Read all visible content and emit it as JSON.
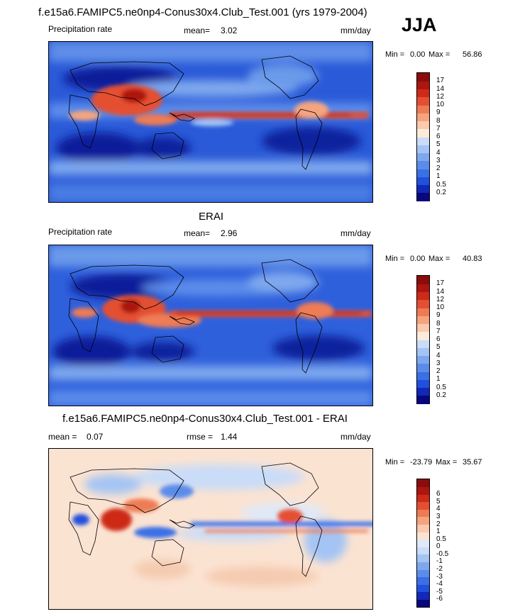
{
  "season": "JJA",
  "colors": {
    "precip": [
      "#08077d",
      "#1128b8",
      "#2150dd",
      "#3a6fe6",
      "#5b8cea",
      "#7ea8ee",
      "#a4c4f4",
      "#c9dcf8",
      "#fdebd9",
      "#fbc9ab",
      "#f5a47e",
      "#ee7b55",
      "#e44f33",
      "#cd2a18",
      "#ad1510",
      "#8a0d0b"
    ],
    "diff": [
      "#08077d",
      "#1128b8",
      "#2150dd",
      "#3a6fe6",
      "#5b8cea",
      "#7ea8ee",
      "#a4c4f4",
      "#c9dcf8",
      "#dfe9f8",
      "#fbe3d2",
      "#fbc9ab",
      "#f5a47e",
      "#ee7b55",
      "#e44f33",
      "#cd2a18",
      "#ad1510",
      "#8a0d0b"
    ]
  },
  "chart_data": [
    {
      "type": "heatmap",
      "title": "f.e15a6.FAMIPC5.ne0np4-Conus30x4.Club_Test.001 (yrs 1979-2004)",
      "left_label": "Precipitation rate",
      "mean_label": "mean=",
      "mean_value": "3.02",
      "units": "mm/day",
      "min_label": "Min =",
      "min_value": "0.00",
      "max_label": "Max =",
      "max_value": "56.86",
      "colorbar_levels": [
        "0.2",
        "0.5",
        "1",
        "2",
        "3",
        "4",
        "5",
        "6",
        "7",
        "8",
        "9",
        "10",
        "12",
        "14",
        "17"
      ]
    },
    {
      "type": "heatmap",
      "title": "ERAI",
      "left_label": "Precipitation rate",
      "mean_label": "mean=",
      "mean_value": "2.96",
      "units": "mm/day",
      "min_label": "Min =",
      "min_value": "0.00",
      "max_label": "Max =",
      "max_value": "40.83",
      "colorbar_levels": [
        "0.2",
        "0.5",
        "1",
        "2",
        "3",
        "4",
        "5",
        "6",
        "7",
        "8",
        "9",
        "10",
        "12",
        "14",
        "17"
      ]
    },
    {
      "type": "heatmap",
      "title": "f.e15a6.FAMIPC5.ne0np4-Conus30x4.Club_Test.001 - ERAI",
      "mean_label": "mean =",
      "mean_value": "0.07",
      "rmse_label": "rmse =",
      "rmse_value": "1.44",
      "units": "mm/day",
      "min_label": "Min =",
      "min_value": "-23.79",
      "max_label": "Max =",
      "max_value": "35.67",
      "colorbar_levels": [
        "-6",
        "-5",
        "-4",
        "-3",
        "-2",
        "-1",
        "-0.5",
        "0",
        "0.5",
        "1",
        "2",
        "3",
        "4",
        "5",
        "6"
      ]
    }
  ]
}
